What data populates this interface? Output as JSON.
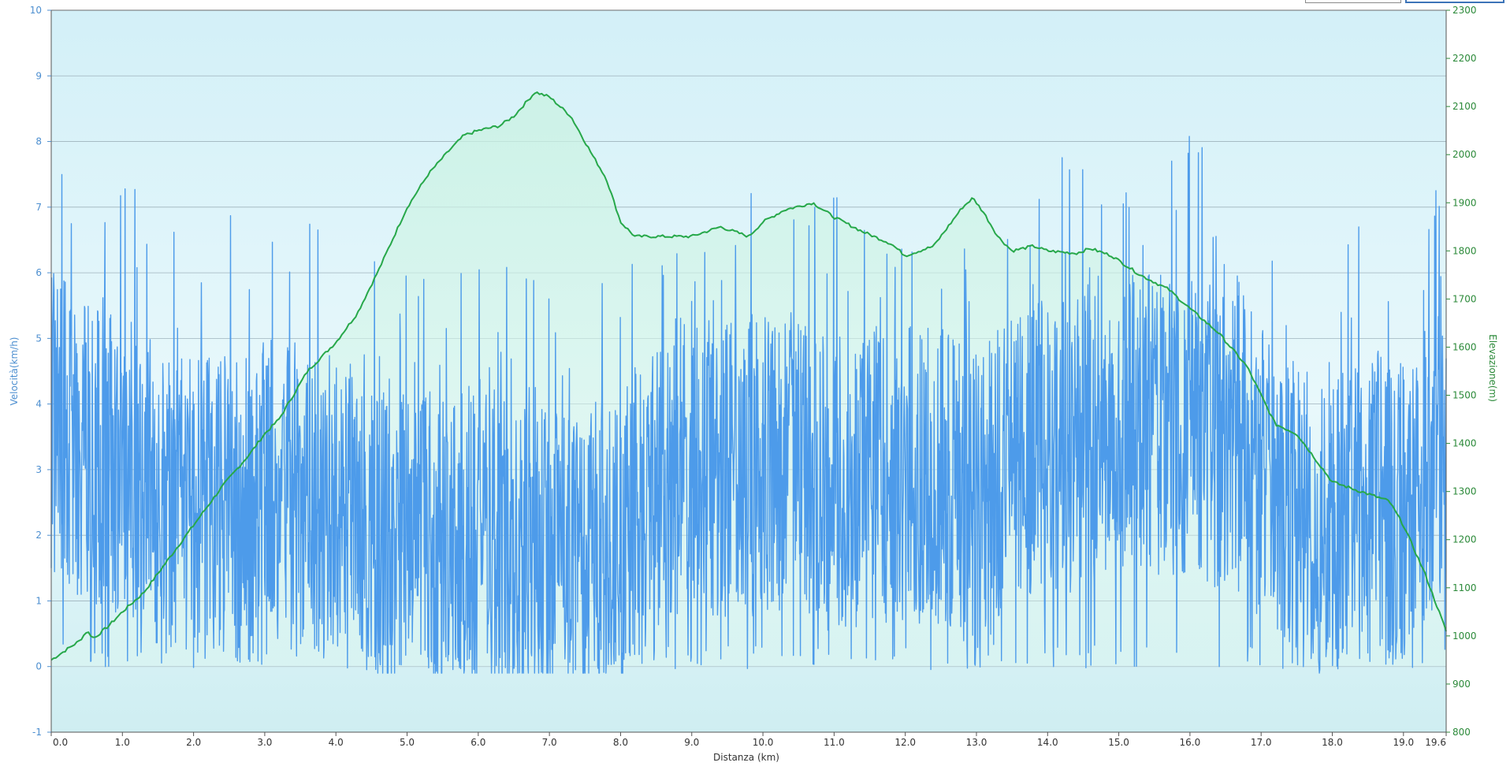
{
  "chart_data": {
    "type": "line",
    "xlabel": "Distanza  (km)",
    "ylabel_left": "Velocità(km/h)",
    "ylabel_right": "Elevazione(m)",
    "xlim": [
      0,
      19.6
    ],
    "x_ticks": [
      0.0,
      1.0,
      2.0,
      3.0,
      4.0,
      5.0,
      6.0,
      7.0,
      8.0,
      9.0,
      10.0,
      11.0,
      12.0,
      13.0,
      14.0,
      15.0,
      16.0,
      17.0,
      18.0,
      19.0,
      19.6
    ],
    "x_tick_labels": [
      "0.0",
      "1.0",
      "2.0",
      "3.0",
      "4.0",
      "5.0",
      "6.0",
      "7.0",
      "8.0",
      "9.0",
      "10.0",
      "11.0",
      "12.0",
      "13.0",
      "14.0",
      "15.0",
      "16.0",
      "17.0",
      "18.0",
      "19.0",
      "19.6"
    ],
    "ylim_left": [
      -1,
      10
    ],
    "y_ticks_left": [
      -1,
      0,
      1,
      2,
      3,
      4,
      5,
      6,
      7,
      8,
      9,
      10
    ],
    "ylim_right": [
      800,
      2300
    ],
    "y_ticks_right": [
      800,
      900,
      1000,
      1100,
      1200,
      1300,
      1400,
      1500,
      1600,
      1700,
      1800,
      1900,
      2000,
      2100,
      2200,
      2300
    ],
    "grid": true,
    "colors": {
      "speed": "#4d9bea",
      "elevation": "#27a84a",
      "left_axis": "#4d8fd0",
      "right_axis": "#2c8a3a"
    },
    "series": [
      {
        "axis": "right",
        "x": [
          0.0,
          0.2,
          0.4,
          0.5,
          0.6,
          0.8,
          1.0,
          1.3,
          1.6,
          1.8,
          2.0,
          2.4,
          2.8,
          3.0,
          3.2,
          3.6,
          4.0,
          4.3,
          4.6,
          5.0,
          5.3,
          5.6,
          5.8,
          6.0,
          6.3,
          6.5,
          6.8,
          7.0,
          7.3,
          7.6,
          7.8,
          8.0,
          8.2,
          8.4,
          8.6,
          9.0,
          9.4,
          9.8,
          10.0,
          10.3,
          10.7,
          11.0,
          11.4,
          11.8,
          12.0,
          12.4,
          12.8,
          12.95,
          13.1,
          13.3,
          13.5,
          13.8,
          14.0,
          14.4,
          14.6,
          14.9,
          15.3,
          15.7,
          16.0,
          16.4,
          16.8,
          17.2,
          17.5,
          17.8,
          18.0,
          18.4,
          18.8,
          19.0,
          19.3,
          19.6
        ],
        "values": [
          950,
          970,
          990,
          1010,
          995,
          1020,
          1050,
          1090,
          1150,
          1190,
          1230,
          1310,
          1380,
          1420,
          1450,
          1550,
          1610,
          1670,
          1760,
          1890,
          1960,
          2010,
          2040,
          2050,
          2060,
          2080,
          2130,
          2120,
          2080,
          2000,
          1950,
          1860,
          1830,
          1830,
          1830,
          1830,
          1850,
          1830,
          1860,
          1885,
          1900,
          1870,
          1840,
          1815,
          1790,
          1810,
          1890,
          1910,
          1880,
          1830,
          1800,
          1810,
          1800,
          1795,
          1805,
          1790,
          1750,
          1720,
          1680,
          1630,
          1560,
          1440,
          1420,
          1360,
          1320,
          1300,
          1280,
          1230,
          1130,
          1010
        ]
      },
      {
        "axis": "left",
        "x": [
          0.0,
          0.5,
          1.0,
          1.5,
          2.0,
          2.5,
          3.0,
          3.5,
          4.0,
          4.5,
          5.0,
          5.5,
          6.0,
          6.5,
          7.0,
          7.5,
          8.0,
          8.5,
          9.0,
          9.5,
          10.0,
          10.5,
          11.0,
          11.5,
          12.0,
          12.5,
          13.0,
          13.5,
          14.0,
          14.5,
          15.0,
          15.5,
          16.0,
          16.5,
          17.0,
          17.5,
          18.0,
          18.5,
          19.0,
          19.6
        ],
        "values": [
          3.8,
          3.2,
          3.1,
          2.6,
          2.6,
          2.5,
          2.8,
          2.5,
          2.6,
          1.9,
          1.9,
          1.9,
          2.0,
          1.7,
          1.6,
          1.7,
          1.9,
          2.9,
          3.1,
          3.0,
          3.1,
          3.1,
          2.8,
          2.9,
          3.0,
          2.9,
          2.5,
          3.1,
          3.3,
          3.5,
          3.8,
          3.7,
          3.7,
          3.4,
          3.0,
          2.3,
          2.0,
          2.6,
          2.3,
          3.4
        ]
      }
    ]
  }
}
